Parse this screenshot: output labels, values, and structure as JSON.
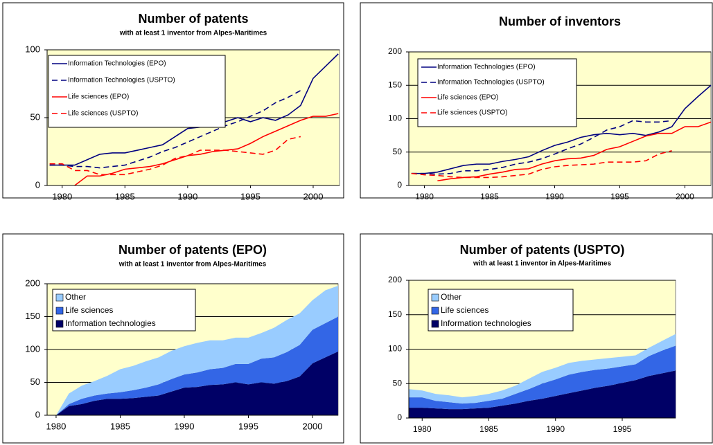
{
  "chart_data": [
    {
      "type": "line",
      "title": "Number of patents",
      "subtitle": "with at least 1 inventor from Alpes-Maritimes",
      "x": [
        1979,
        1980,
        1981,
        1982,
        1983,
        1984,
        1985,
        1986,
        1987,
        1988,
        1989,
        1990,
        1991,
        1992,
        1993,
        1994,
        1995,
        1996,
        1997,
        1998,
        1999,
        2000,
        2001,
        2002
      ],
      "xlim": [
        1978.8,
        2002.1
      ],
      "xticks": [
        1980,
        1985,
        1990,
        1995,
        2000
      ],
      "ylim": [
        0,
        100
      ],
      "yticks": [
        0,
        50,
        100
      ],
      "grid": true,
      "series": [
        {
          "name": "Information Technologies (EPO)",
          "color": "#000080",
          "dashed": false,
          "values": [
            15,
            15,
            15,
            19,
            23,
            24,
            24,
            26,
            28,
            30,
            36,
            42,
            43,
            46,
            47,
            50,
            47,
            50,
            48,
            52,
            59,
            79,
            88,
            97
          ]
        },
        {
          "name": "Information Technologies (USPTO)",
          "color": "#000080",
          "dashed": true,
          "values": [
            15,
            15,
            14,
            14,
            13,
            14,
            15,
            18,
            21,
            25,
            28,
            32,
            36,
            40,
            44,
            47,
            51,
            55,
            61,
            65,
            70,
            null,
            null,
            null
          ]
        },
        {
          "name": "Life sciences (EPO)",
          "color": "#ff0000",
          "dashed": false,
          "values": [
            null,
            null,
            0,
            7,
            7,
            9,
            12,
            13,
            14,
            16,
            19,
            22,
            23,
            25,
            26,
            27,
            31,
            36,
            40,
            44,
            48,
            51,
            51,
            53
          ]
        },
        {
          "name": "Life sciences (USPTO)",
          "color": "#ff0000",
          "dashed": true,
          "values": [
            16,
            16,
            11,
            11,
            8,
            8,
            8,
            10,
            12,
            15,
            20,
            22,
            26,
            26,
            26,
            25,
            24,
            23,
            26,
            34,
            36,
            null,
            null,
            null
          ]
        }
      ]
    },
    {
      "type": "line",
      "title": "Number of inventors",
      "x": [
        1979,
        1980,
        1981,
        1982,
        1983,
        1984,
        1985,
        1986,
        1987,
        1988,
        1989,
        1990,
        1991,
        1992,
        1993,
        1994,
        1995,
        1996,
        1997,
        1998,
        1999,
        2000,
        2001,
        2002
      ],
      "xlim": [
        1978.8,
        2002
      ],
      "xticks": [
        1980,
        1985,
        1990,
        1995,
        2000
      ],
      "ylim": [
        0,
        200
      ],
      "yticks": [
        0,
        50,
        100,
        150,
        200
      ],
      "grid": true,
      "series": [
        {
          "name": "Information Technologies (EPO)",
          "color": "#000080",
          "dashed": false,
          "values": [
            18,
            18,
            20,
            25,
            30,
            32,
            32,
            36,
            39,
            43,
            52,
            60,
            65,
            72,
            76,
            78,
            76,
            78,
            75,
            80,
            88,
            115,
            133,
            150
          ]
        },
        {
          "name": "Information Technologies (USPTO)",
          "color": "#000080",
          "dashed": true,
          "values": [
            18,
            18,
            17,
            18,
            22,
            22,
            24,
            27,
            32,
            35,
            40,
            47,
            55,
            62,
            72,
            83,
            88,
            97,
            95,
            95,
            97,
            null,
            null,
            null
          ]
        },
        {
          "name": "Life sciences (EPO)",
          "color": "#ff0000",
          "dashed": false,
          "values": [
            null,
            null,
            7,
            10,
            12,
            13,
            17,
            20,
            24,
            25,
            32,
            37,
            40,
            41,
            45,
            54,
            58,
            66,
            74,
            78,
            78,
            88,
            88,
            95
          ]
        },
        {
          "name": "Life sciences (USPTO)",
          "color": "#ff0000",
          "dashed": true,
          "values": [
            18,
            16,
            15,
            13,
            12,
            12,
            12,
            13,
            15,
            17,
            24,
            28,
            30,
            31,
            32,
            35,
            35,
            35,
            37,
            47,
            52,
            null,
            null,
            null
          ]
        }
      ]
    },
    {
      "type": "stacked_area",
      "title": "Number of patents (EPO)",
      "subtitle": "with at least 1 inventor from Alpes-Maritimes",
      "x": [
        1980,
        1981,
        1982,
        1983,
        1984,
        1985,
        1986,
        1987,
        1988,
        1989,
        1990,
        1991,
        1992,
        1993,
        1994,
        1995,
        1996,
        1997,
        1998,
        1999,
        2000,
        2001,
        2002
      ],
      "xlim": [
        1979.3,
        2002
      ],
      "xticks": [
        1980,
        1985,
        1990,
        1995,
        2000
      ],
      "ylim": [
        0,
        200
      ],
      "yticks": [
        0,
        50,
        100,
        150,
        200
      ],
      "grid": true,
      "series": [
        {
          "name": "Information technologies",
          "color": "#000066",
          "values": [
            0,
            14,
            17,
            22,
            25,
            25,
            26,
            28,
            30,
            36,
            42,
            43,
            46,
            47,
            50,
            47,
            50,
            48,
            52,
            59,
            79,
            88,
            97
          ]
        },
        {
          "name": "Life sciences",
          "color": "#3366e6",
          "values": [
            0,
            3,
            8,
            8,
            8,
            10,
            12,
            14,
            17,
            19,
            20,
            22,
            24,
            25,
            28,
            31,
            36,
            40,
            44,
            48,
            51,
            52,
            53
          ]
        },
        {
          "name": "Other",
          "color": "#99ccff",
          "values": [
            0,
            16,
            20,
            22,
            27,
            35,
            37,
            40,
            41,
            43,
            43,
            45,
            44,
            42,
            40,
            40,
            39,
            45,
            49,
            48,
            45,
            50,
            47
          ]
        }
      ]
    },
    {
      "type": "stacked_area",
      "title": "Number of patents (USPTO)",
      "subtitle": "with at least 1 inventor in Alpes-Maritimes",
      "x": [
        1979,
        1980,
        1981,
        1982,
        1983,
        1984,
        1985,
        1986,
        1987,
        1988,
        1989,
        1990,
        1991,
        1992,
        1993,
        1994,
        1995,
        1996,
        1997,
        1998,
        1999
      ],
      "xlim": [
        1979,
        1999
      ],
      "xticks": [
        1980,
        1985,
        1990,
        1995
      ],
      "ylim": [
        0,
        200
      ],
      "yticks": [
        0,
        50,
        100,
        150,
        200
      ],
      "grid": true,
      "series": [
        {
          "name": "Information technologies",
          "color": "#000066",
          "values": [
            15,
            15,
            14,
            13,
            13,
            14,
            15,
            18,
            21,
            25,
            28,
            32,
            36,
            40,
            44,
            47,
            51,
            55,
            61,
            65,
            69
          ]
        },
        {
          "name": "Life sciences",
          "color": "#3366e6",
          "values": [
            15,
            15,
            11,
            10,
            8,
            8,
            10,
            10,
            14,
            17,
            22,
            24,
            27,
            27,
            26,
            25,
            24,
            23,
            29,
            33,
            36
          ]
        },
        {
          "name": "Other",
          "color": "#99ccff",
          "values": [
            12,
            10,
            10,
            10,
            9,
            10,
            10,
            12,
            12,
            15,
            17,
            17,
            17,
            16,
            15,
            15,
            14,
            13,
            12,
            14,
            17
          ]
        }
      ]
    }
  ]
}
